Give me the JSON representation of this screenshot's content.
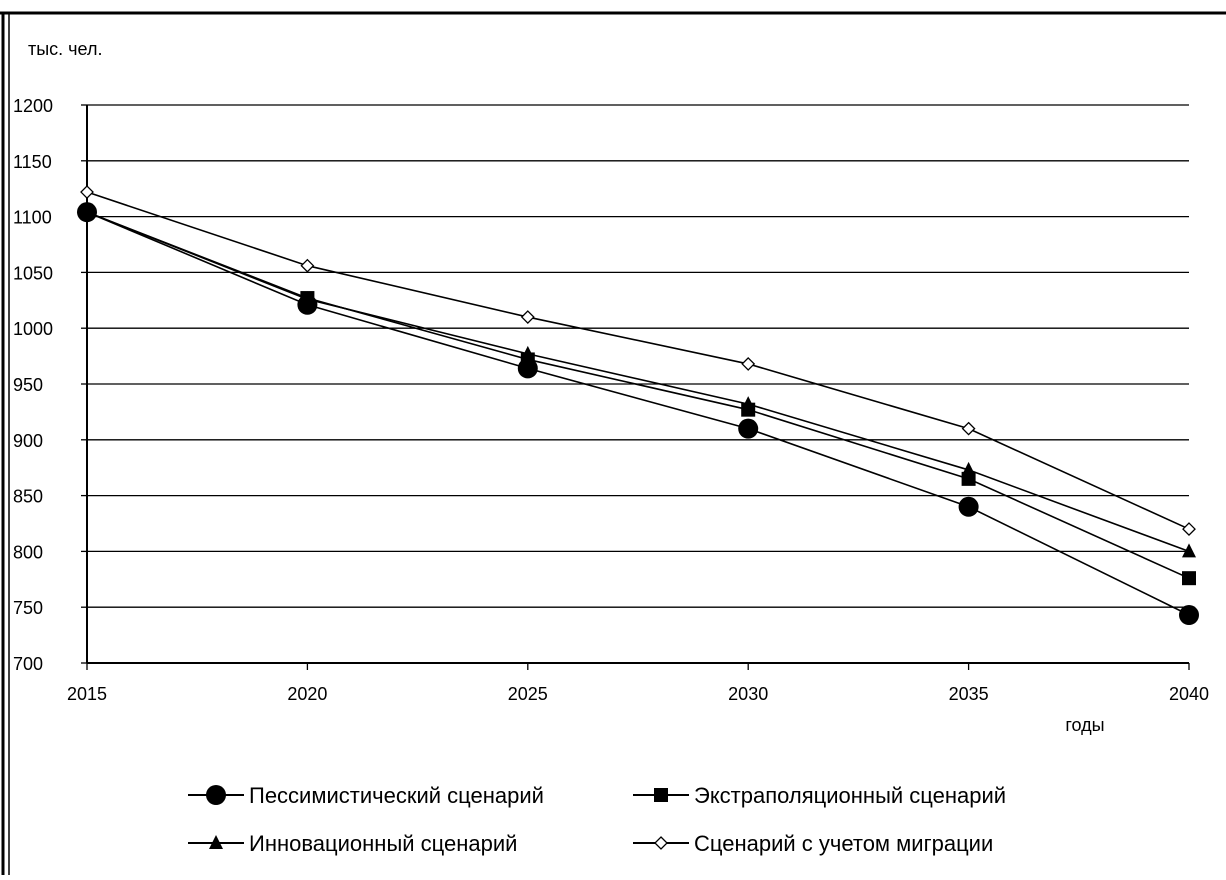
{
  "chart_data": {
    "type": "line",
    "title": "",
    "ylabel": "тыс. чел.",
    "xlabel": "годы",
    "x": [
      2015,
      2020,
      2025,
      2030,
      2035,
      2040
    ],
    "ylim": [
      700,
      1200
    ],
    "yticks": [
      700,
      750,
      800,
      850,
      900,
      950,
      1000,
      1050,
      1100,
      1150,
      1200
    ],
    "grid": "horizontal",
    "legend_position": "bottom",
    "series": [
      {
        "name": "Пессимистический сценарий",
        "marker": "circle",
        "values": [
          1104,
          1021,
          964,
          910,
          840,
          743
        ]
      },
      {
        "name": "Экстраполяционный сценарий",
        "marker": "square",
        "values": [
          1104,
          1027,
          972,
          927,
          865,
          776
        ]
      },
      {
        "name": "Инновационный сценарий",
        "marker": "triangle",
        "values": [
          1104,
          1026,
          977,
          932,
          873,
          800
        ]
      },
      {
        "name": "Сценарий с учетом миграции",
        "marker": "diamond-open",
        "values": [
          1122,
          1056,
          1010,
          968,
          910,
          820
        ]
      }
    ]
  },
  "colors": {
    "line": "#000000",
    "grid": "#000000",
    "background": "#ffffff"
  }
}
